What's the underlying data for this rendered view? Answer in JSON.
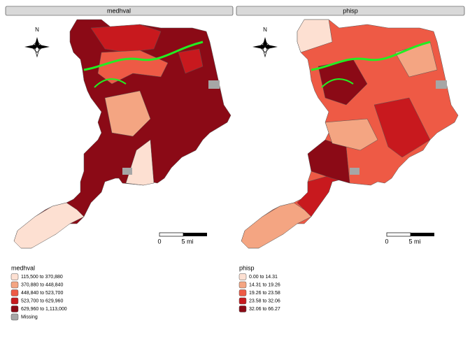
{
  "panels": [
    {
      "title": "medhval",
      "north": "N",
      "scale": {
        "start": "0",
        "end": "5 mi"
      },
      "legend": {
        "title": "medhval",
        "items": [
          {
            "label": "115,500 to 370,880",
            "color": "#fde0d2"
          },
          {
            "label": "370,880 to 448,840",
            "color": "#f4a582"
          },
          {
            "label": "448,840 to 523,700",
            "color": "#ee5a45"
          },
          {
            "label": "523,700 to 629,960",
            "color": "#c8191e"
          },
          {
            "label": "629,960 to 1,113,000",
            "color": "#8b0a16"
          },
          {
            "label": "Missing",
            "color": "#a6a6a6"
          }
        ]
      }
    },
    {
      "title": "phisp",
      "north": "N",
      "scale": {
        "start": "0",
        "end": "5 mi"
      },
      "legend": {
        "title": "phisp",
        "items": [
          {
            "label": "0.00 to 14.31",
            "color": "#fde0d2"
          },
          {
            "label": "14.31 to 19.26",
            "color": "#f4a582"
          },
          {
            "label": "19.26 to 23.58",
            "color": "#ee5a45"
          },
          {
            "label": "23.58 to 32.06",
            "color": "#c8191e"
          },
          {
            "label": "32.06 to 66.27",
            "color": "#8b0a16"
          }
        ]
      }
    }
  ]
}
